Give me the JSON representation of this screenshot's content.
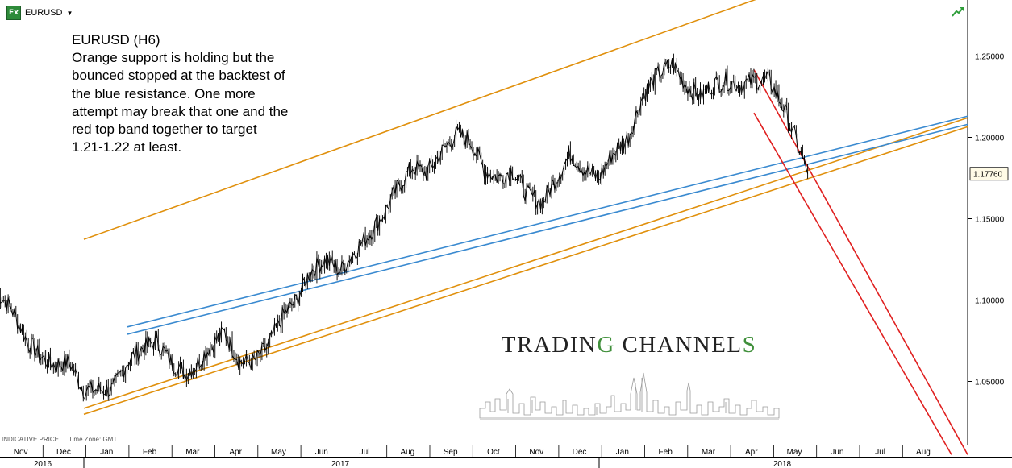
{
  "header": {
    "icon_label": "Fx",
    "symbol": "EURUSD"
  },
  "annotation": {
    "lines": [
      "EURUSD (H6)",
      "Orange support is holding but the",
      "bounced stopped at the backtest of",
      "the blue resistance. One more",
      "attempt may break that one and the",
      "red top band together to target",
      "1.21-1.22 at least."
    ]
  },
  "footer": {
    "indicative": "INDICATIVE PRICE",
    "timezone": "Time Zone: GMT"
  },
  "brand": {
    "part1": "TRADIN",
    "part2": "G",
    "part3": " CHANNEL",
    "part4": "S"
  },
  "chart_data": {
    "type": "line",
    "title": "",
    "symbol": "EURUSD",
    "ylim": [
      1.0,
      1.28
    ],
    "y_ticks": [
      "1.05000",
      "1.10000",
      "1.15000",
      "1.20000",
      "1.25000"
    ],
    "y_tick_values": [
      1.05,
      1.1,
      1.15,
      1.2,
      1.25
    ],
    "current_price_label": "1.17760",
    "current_price": 1.1776,
    "month_labels": [
      "Nov",
      "Dec",
      "Jan",
      "Feb",
      "Mar",
      "Apr",
      "May",
      "Jun",
      "Jul",
      "Aug",
      "Sep",
      "Oct",
      "Nov",
      "Dec",
      "Jan",
      "Feb",
      "Mar",
      "Apr",
      "May",
      "Jun",
      "Jul",
      "Aug"
    ],
    "year_labels": [
      "2016",
      "2017",
      "2018"
    ],
    "grid": false,
    "series": [
      {
        "color": "#000000",
        "x": [
          "2016-10-15",
          "2016-10-25",
          "2016-11-05",
          "2016-11-15",
          "2016-11-25",
          "2016-12-05",
          "2016-12-15",
          "2016-12-25",
          "2017-01-05",
          "2017-01-15",
          "2017-01-25",
          "2017-02-05",
          "2017-02-15",
          "2017-02-25",
          "2017-03-05",
          "2017-03-15",
          "2017-03-25",
          "2017-04-05",
          "2017-04-15",
          "2017-04-25",
          "2017-05-05",
          "2017-05-15",
          "2017-05-25",
          "2017-06-05",
          "2017-06-15",
          "2017-06-25",
          "2017-07-05",
          "2017-07-15",
          "2017-07-25",
          "2017-08-05",
          "2017-08-15",
          "2017-08-25",
          "2017-09-05",
          "2017-09-15",
          "2017-09-25",
          "2017-10-05",
          "2017-10-15",
          "2017-10-25",
          "2017-11-05",
          "2017-11-15",
          "2017-11-25",
          "2017-12-05",
          "2017-12-15",
          "2017-12-25",
          "2018-01-05",
          "2018-01-15",
          "2018-01-25",
          "2018-02-05",
          "2018-02-15",
          "2018-02-25",
          "2018-03-05",
          "2018-03-15",
          "2018-03-25",
          "2018-04-05",
          "2018-04-15",
          "2018-04-25",
          "2018-05-05",
          "2018-05-12"
        ],
        "values": [
          1.105,
          1.095,
          1.075,
          1.065,
          1.06,
          1.062,
          1.045,
          1.045,
          1.045,
          1.062,
          1.07,
          1.075,
          1.062,
          1.055,
          1.06,
          1.072,
          1.08,
          1.062,
          1.062,
          1.072,
          1.09,
          1.1,
          1.118,
          1.125,
          1.118,
          1.13,
          1.14,
          1.152,
          1.168,
          1.182,
          1.178,
          1.19,
          1.202,
          1.198,
          1.18,
          1.175,
          1.18,
          1.165,
          1.16,
          1.175,
          1.19,
          1.18,
          1.175,
          1.19,
          1.2,
          1.225,
          1.238,
          1.245,
          1.232,
          1.225,
          1.232,
          1.235,
          1.232,
          1.235,
          1.235,
          1.218,
          1.195,
          1.1776
        ]
      }
    ],
    "trendlines": [
      {
        "color": "#e0900d",
        "label": "orange top channel"
      },
      {
        "color": "#e0900d",
        "label": "orange support"
      },
      {
        "color": "#e0900d",
        "label": "orange support"
      },
      {
        "color": "#3a8ad0",
        "label": "blue resistance"
      },
      {
        "color": "#3a8ad0",
        "label": "blue resistance"
      },
      {
        "color": "#e02020",
        "label": "red band"
      },
      {
        "color": "#e02020",
        "label": "red band"
      }
    ]
  }
}
